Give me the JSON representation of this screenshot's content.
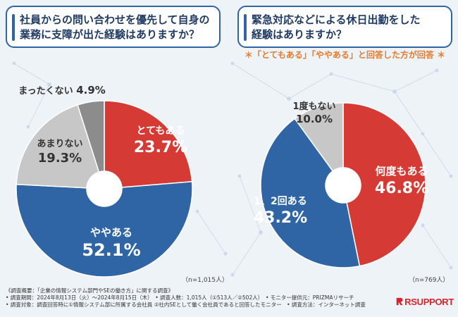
{
  "background_color": "#eef3f8",
  "chart_data": [
    {
      "type": "pie",
      "variant": "donut",
      "title": "社員からの問い合わせを優先して自身の業務に支障が出た経験はありますか？",
      "title_lines": [
        "社員からの問い合わせを優先して自身の",
        "業務に支障が出た経験はありますか？"
      ],
      "slices": [
        {
          "label": "とてもある",
          "value": 23.7,
          "display": "23.7%",
          "color": "#d63a34",
          "label_color": "#ffffff"
        },
        {
          "label": "ややある",
          "value": 52.1,
          "display": "52.1%",
          "color": "#2f64a5",
          "label_color": "#ffffff"
        },
        {
          "label": "あまりない",
          "value": 19.3,
          "display": "19.3%",
          "color": "#c7c7c7",
          "label_color": "#333333"
        },
        {
          "label": "まったくない",
          "value": 4.9,
          "display": "4.9%",
          "color": "#8c8c8c",
          "label_color": "#333333"
        }
      ],
      "n_label": "（n=1,015人）"
    },
    {
      "type": "pie",
      "variant": "donut",
      "title": "緊急対応などによる休日出勤をした経験はありますか？",
      "title_lines": [
        "緊急対応などによる休日出勤をした",
        "経験はありますか？"
      ],
      "note": "＊「とてもある」「ややある」と回答した方が回答 ＊",
      "slices": [
        {
          "label": "何度もある",
          "value": 46.8,
          "display": "46.8%",
          "color": "#d63a34",
          "label_color": "#ffffff"
        },
        {
          "label": "1、2回ある",
          "value": 43.2,
          "display": "43.2%",
          "color": "#2f64a5",
          "label_color": "#ffffff"
        },
        {
          "label": "1度もない",
          "value": 10.0,
          "display": "10.0%",
          "color": "#c7c7c7",
          "label_color": "#333333"
        }
      ],
      "n_label": "（n=769人）"
    }
  ],
  "footer": {
    "lines": [
      "《調査概要：「企業の情報システム部門やSEの働き方」に関する調査》",
      "• 調査期間：2024年8月13日（火）〜2024年8月15日（木）　• 調査人数：1,015人（①513人／②502人）　• モニター提供元：PRIZMAリサーチ",
      "• 調査対象：調査回答時に①情報システム部に所属する会社員 ②社内SEとして働く会社員であると回答したモニター　• 調査方法：インターネット調査"
    ]
  },
  "logo": {
    "text": "RSUPPORT",
    "color": "#d8232a"
  }
}
